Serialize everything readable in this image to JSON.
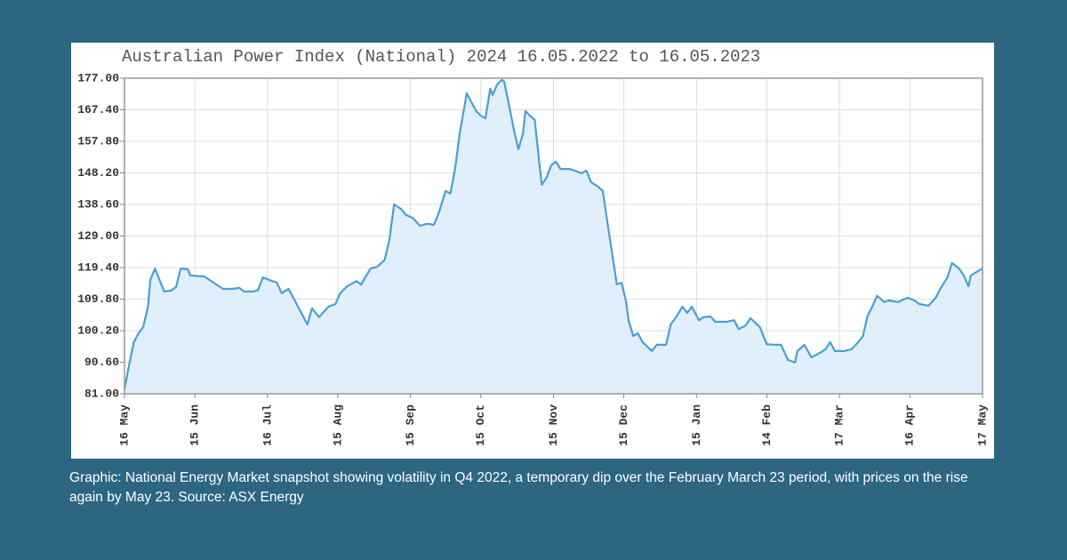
{
  "chart_data": {
    "type": "line",
    "title": "Australian Power Index (National) 2024 16.05.2022 to 16.05.2023",
    "x": [
      0,
      2,
      4,
      6,
      8,
      10,
      11,
      13,
      15,
      17,
      20,
      22,
      24,
      27,
      28,
      34,
      38,
      42,
      46,
      49,
      51,
      55,
      57,
      59,
      63,
      65,
      67,
      70,
      74,
      78,
      80,
      83,
      87,
      90,
      92,
      95,
      99,
      101,
      102,
      105,
      108,
      111,
      113,
      115,
      118,
      120,
      123,
      126,
      129,
      132,
      134,
      137,
      139,
      141,
      143,
      146,
      148,
      150,
      152,
      154,
      156,
      157,
      159,
      161,
      162,
      164,
      166,
      168,
      170,
      171,
      173,
      175,
      177,
      178,
      180,
      182,
      184,
      186,
      190,
      193,
      195,
      197,
      199,
      202,
      204,
      206,
      208,
      210,
      212,
      214,
      215,
      217,
      219,
      221,
      225,
      227,
      231,
      233,
      235,
      238,
      240,
      242,
      245,
      247,
      250,
      252,
      255,
      257,
      260,
      262,
      265,
      267,
      271,
      274,
      277,
      280,
      283,
      286,
      287,
      290,
      293,
      296,
      299,
      301,
      303,
      307,
      310,
      313,
      315,
      317,
      319,
      321,
      324,
      326,
      330,
      334,
      337,
      339,
      343,
      346,
      348,
      351,
      353,
      356,
      358,
      360,
      361,
      364,
      366
    ],
    "values": [
      82.4,
      89.9,
      96.7,
      99.4,
      101.3,
      107.5,
      115.6,
      119.1,
      115.6,
      112.1,
      112.4,
      113.5,
      119.1,
      118.9,
      117,
      116.7,
      114.8,
      112.9,
      112.9,
      113.2,
      112.1,
      112.1,
      112.6,
      116.4,
      115.3,
      114.8,
      111.6,
      112.9,
      107.5,
      102.1,
      107,
      104.3,
      107.5,
      108.3,
      111.6,
      113.7,
      115.3,
      114.2,
      115.6,
      119.1,
      119.7,
      121.8,
      127.8,
      138.6,
      137.2,
      135.4,
      134.5,
      132.1,
      132.7,
      132.4,
      135.9,
      142.7,
      141.9,
      149.4,
      160.2,
      172.4,
      169.7,
      167,
      165.6,
      164.8,
      173.8,
      171.9,
      175.1,
      176.5,
      175.9,
      168.9,
      161.6,
      155.4,
      160.2,
      167,
      165.6,
      164.3,
      150.8,
      144.6,
      146.7,
      150.5,
      151.6,
      149.4,
      149.4,
      148.6,
      148.1,
      148.9,
      145.4,
      144,
      142.7,
      133.2,
      123.7,
      114.3,
      114.8,
      108.9,
      103.4,
      98.6,
      99.4,
      96.7,
      94,
      95.9,
      95.9,
      102.1,
      104,
      107.5,
      105.6,
      107.5,
      103.4,
      104.3,
      104.5,
      102.9,
      102.9,
      102.9,
      103.4,
      100.7,
      101.8,
      104,
      101.3,
      96.1,
      95.9,
      95.9,
      91.3,
      90.5,
      94,
      95.9,
      92.1,
      93.2,
      94.5,
      96.7,
      94,
      94,
      94.5,
      96.7,
      98.6,
      104.8,
      107.5,
      110.8,
      108.9,
      109.4,
      108.9,
      110.2,
      109.4,
      108.3,
      107.8,
      110.2,
      112.9,
      116.4,
      120.8,
      119.1,
      117,
      113.7,
      117,
      118.3,
      119.1
    ],
    "color": "#4a9fd4",
    "fill_color": "#e1effc",
    "xlim": [
      0,
      366
    ],
    "xticks": [
      {
        "value": 0,
        "label": "16 May"
      },
      {
        "value": 30,
        "label": "15 Jun"
      },
      {
        "value": 61,
        "label": "16 Jul"
      },
      {
        "value": 91,
        "label": "15 Aug"
      },
      {
        "value": 122,
        "label": "15 Sep"
      },
      {
        "value": 152,
        "label": "15 Oct"
      },
      {
        "value": 183,
        "label": "15 Nov"
      },
      {
        "value": 213,
        "label": "15 Dec"
      },
      {
        "value": 244,
        "label": "15 Jan"
      },
      {
        "value": 274,
        "label": "14 Feb"
      },
      {
        "value": 305,
        "label": "17 Mar"
      },
      {
        "value": 335,
        "label": "16 Apr"
      },
      {
        "value": 366,
        "label": "17 May"
      }
    ],
    "ylim": [
      81,
      177
    ],
    "yticks": [
      {
        "value": 81,
        "label": "81.00"
      },
      {
        "value": 90.6,
        "label": "90.60"
      },
      {
        "value": 100.2,
        "label": "100.20"
      },
      {
        "value": 109.8,
        "label": "109.80"
      },
      {
        "value": 119.4,
        "label": "119.40"
      },
      {
        "value": 129,
        "label": "129.00"
      },
      {
        "value": 138.6,
        "label": "138.60"
      },
      {
        "value": 148.2,
        "label": "148.20"
      },
      {
        "value": 157.8,
        "label": "157.80"
      },
      {
        "value": 167.4,
        "label": "167.40"
      },
      {
        "value": 177,
        "label": "177.00"
      }
    ],
    "grid": true
  },
  "caption": "Graphic: National Energy Market snapshot showing volatility in Q4 2022, a temporary dip over the February March 23 period, with prices on the rise again by May 23. Source: ASX Energy"
}
